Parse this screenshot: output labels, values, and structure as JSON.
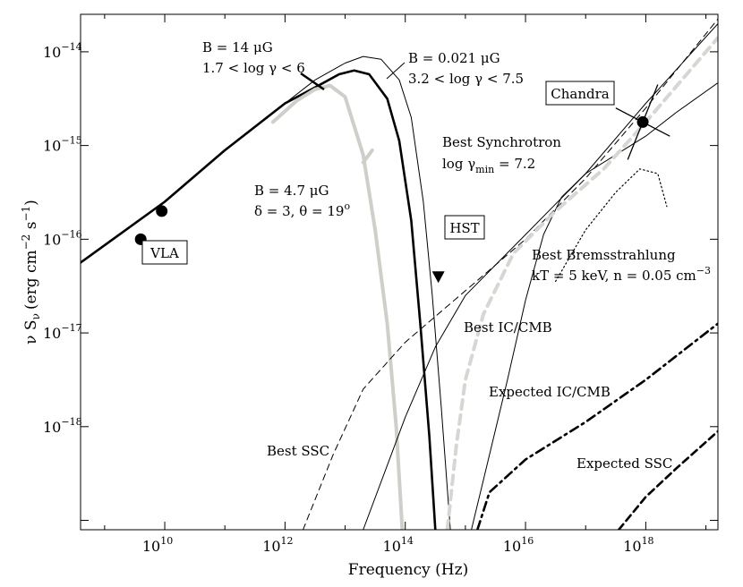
{
  "chart_data": {
    "type": "line",
    "xlabel": "Frequency (Hz)",
    "ylabel": "ν S",
    "ylabel_sub": "ν",
    "ylabel_units": "(erg cm",
    "ylabel_exp1": "−2",
    "ylabel_mid": " s",
    "ylabel_exp2": "−1",
    "ylabel_end": ")",
    "xscale": "log",
    "yscale": "log",
    "xlim_log": [
      8.6,
      19.2
    ],
    "ylim_log": [
      -19.1,
      -13.6
    ],
    "xticks": [
      {
        "exp": 10,
        "base": "10",
        "sup": "10"
      },
      {
        "exp": 12,
        "base": "10",
        "sup": "12"
      },
      {
        "exp": 14,
        "base": "10",
        "sup": "14"
      },
      {
        "exp": 16,
        "base": "10",
        "sup": "16"
      },
      {
        "exp": 18,
        "base": "10",
        "sup": "18"
      }
    ],
    "yticks": [
      {
        "exp": -14,
        "base": "10",
        "sup": "−14"
      },
      {
        "exp": -15,
        "base": "10",
        "sup": "−15"
      },
      {
        "exp": -16,
        "base": "10",
        "sup": "−16"
      },
      {
        "exp": -17,
        "base": "10",
        "sup": "−17"
      },
      {
        "exp": -18,
        "base": "10",
        "sup": "−18"
      }
    ],
    "series": [
      {
        "key": "sync_b021",
        "style": "thin",
        "color": "#000000",
        "points": [
          [
            8.6,
            -16.25
          ],
          [
            10,
            -15.6
          ],
          [
            11,
            -15.05
          ],
          [
            12,
            -14.55
          ],
          [
            12.5,
            -14.3
          ],
          [
            13,
            -14.12
          ],
          [
            13.3,
            -14.05
          ],
          [
            13.6,
            -14.08
          ],
          [
            13.9,
            -14.3
          ],
          [
            14.1,
            -14.7
          ],
          [
            14.3,
            -15.6
          ],
          [
            14.45,
            -16.6
          ],
          [
            14.6,
            -17.8
          ],
          [
            14.75,
            -19.1
          ]
        ]
      },
      {
        "key": "sync_b14",
        "style": "thick",
        "color": "#000000",
        "points": [
          [
            8.6,
            -16.25
          ],
          [
            10,
            -15.6
          ],
          [
            11,
            -15.05
          ],
          [
            12,
            -14.55
          ],
          [
            12.5,
            -14.38
          ],
          [
            12.9,
            -14.24
          ],
          [
            13.15,
            -14.2
          ],
          [
            13.4,
            -14.24
          ],
          [
            13.7,
            -14.5
          ],
          [
            13.9,
            -14.95
          ],
          [
            14.1,
            -15.8
          ],
          [
            14.25,
            -16.9
          ],
          [
            14.4,
            -18.1
          ],
          [
            14.5,
            -19.1
          ]
        ]
      },
      {
        "key": "sync_b47",
        "style": "grey",
        "color": "#cfcfca",
        "points": [
          [
            11.8,
            -14.75
          ],
          [
            12.2,
            -14.52
          ],
          [
            12.5,
            -14.4
          ],
          [
            12.75,
            -14.36
          ],
          [
            13,
            -14.48
          ],
          [
            13.3,
            -15.1
          ],
          [
            13.5,
            -15.9
          ],
          [
            13.7,
            -16.9
          ],
          [
            13.85,
            -18.0
          ],
          [
            13.95,
            -19.1
          ]
        ]
      },
      {
        "key": "sync_b47_cut",
        "style": "grey",
        "color": "#cfcfca",
        "points": [
          [
            13.3,
            -15.18
          ],
          [
            13.45,
            -15.05
          ]
        ]
      },
      {
        "key": "best_sync_xray",
        "style": "thin",
        "color": "#000000",
        "points": [
          [
            15.1,
            -19.1
          ],
          [
            15.4,
            -18.3
          ],
          [
            15.7,
            -17.5
          ],
          [
            16,
            -16.65
          ],
          [
            16.3,
            -15.95
          ],
          [
            16.6,
            -15.55
          ],
          [
            17,
            -15.3
          ],
          [
            17.5,
            -15.1
          ],
          [
            18,
            -14.9
          ],
          [
            18.5,
            -14.65
          ],
          [
            19.2,
            -14.33
          ]
        ]
      },
      {
        "key": "best_ic_cmb",
        "style": "thin",
        "color": "#000000",
        "points": [
          [
            13.3,
            -19.1
          ],
          [
            14,
            -17.9
          ],
          [
            14.5,
            -17.15
          ],
          [
            15,
            -16.6
          ],
          [
            16,
            -15.95
          ],
          [
            17,
            -15.3
          ],
          [
            18,
            -14.55
          ],
          [
            19.2,
            -13.7
          ]
        ]
      },
      {
        "key": "best_ssc",
        "style": "dashthin",
        "color": "#000000",
        "points": [
          [
            12.3,
            -19.1
          ],
          [
            12.8,
            -18.3
          ],
          [
            13.3,
            -17.6
          ],
          [
            14,
            -17.1
          ],
          [
            15,
            -16.55
          ],
          [
            16,
            -16.0
          ],
          [
            17,
            -15.35
          ],
          [
            18,
            -14.6
          ],
          [
            19.2,
            -13.65
          ]
        ]
      },
      {
        "key": "grey_dashed",
        "style": "greydash",
        "color": "#d6d6d2",
        "points": [
          [
            14.7,
            -19.1
          ],
          [
            14.85,
            -18.2
          ],
          [
            15,
            -17.5
          ],
          [
            15.3,
            -16.8
          ],
          [
            15.8,
            -16.15
          ],
          [
            16.5,
            -15.7
          ],
          [
            17.3,
            -15.25
          ],
          [
            18,
            -14.75
          ],
          [
            18.6,
            -14.3
          ],
          [
            19.2,
            -13.85
          ]
        ]
      },
      {
        "key": "bremsstrahlung",
        "style": "dotted",
        "color": "#000000",
        "points": [
          [
            16.5,
            -16.45
          ],
          [
            17,
            -15.9
          ],
          [
            17.5,
            -15.5
          ],
          [
            17.9,
            -15.25
          ],
          [
            18.2,
            -15.3
          ],
          [
            18.35,
            -15.65
          ]
        ]
      },
      {
        "key": "expected_ic_cmb",
        "style": "dashdot",
        "color": "#000000",
        "points": [
          [
            15.2,
            -19.1
          ],
          [
            15.4,
            -18.7
          ],
          [
            16,
            -18.35
          ],
          [
            17,
            -17.95
          ],
          [
            18,
            -17.5
          ],
          [
            19.2,
            -16.9
          ]
        ]
      },
      {
        "key": "expected_ssc",
        "style": "dashthick",
        "color": "#000000",
        "points": [
          [
            17.55,
            -19.1
          ],
          [
            18,
            -18.75
          ],
          [
            18.5,
            -18.45
          ],
          [
            19.2,
            -18.05
          ]
        ]
      }
    ],
    "data_points": [
      {
        "x": 9.6,
        "y": -16.0
      },
      {
        "x": 9.95,
        "y": -15.7
      },
      {
        "x": 17.95,
        "y": -14.75
      }
    ],
    "upper_limit": {
      "x": 14.55,
      "y": -16.4
    },
    "chandra_bowtie": [
      [
        [
          17.5,
          -14.6
        ],
        [
          18.4,
          -14.9
        ]
      ],
      [
        [
          17.7,
          -15.15
        ],
        [
          18.2,
          -14.35
        ]
      ]
    ],
    "annotations": {
      "b14_line1": "B = 14 μG",
      "b14_line2": "1.7 < log γ < 6",
      "b021_line1": "B = 0.021 μG",
      "b021_line2": "3.2 < log γ < 7.5",
      "b47_line1": "B = 4.7 μG",
      "b47_line2_a": "δ = 3, θ = 19",
      "b47_line2_sup": "o",
      "sync_line1": "Best Synchrotron",
      "sync_line2_a": "log γ",
      "sync_line2_sub": "min",
      "sync_line2_b": " = 7.2",
      "brems_line1": "Best Bremsstrahlung",
      "brems_line2_a": "kT = 5 keV, n = 0.05 cm",
      "brems_line2_sup": "−3",
      "best_ic_cmb": "Best IC/CMB",
      "expected_ic_cmb": "Expected IC/CMB",
      "best_ssc": "Best SSC",
      "expected_ssc": "Expected SSC",
      "vla": "VLA",
      "hst": "HST",
      "chandra": "Chandra"
    }
  }
}
